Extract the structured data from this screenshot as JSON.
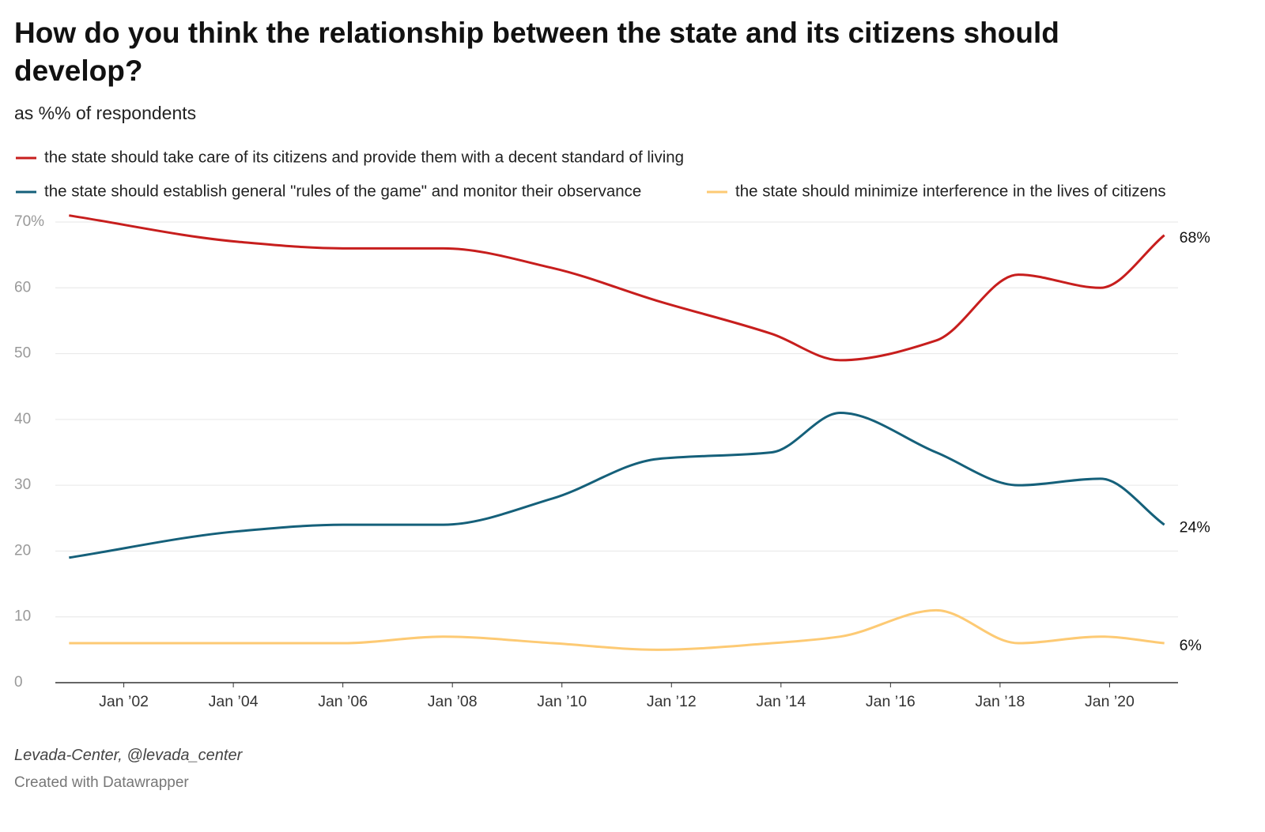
{
  "chart_data": {
    "type": "line",
    "title": "How do you think the relationship between the state and its citizens should develop?",
    "subtitle": "as %% of respondents",
    "source": "Levada-Center, @levada_center",
    "credit": "Created with Datawrapper",
    "x": [
      "2001-01",
      "2004-02",
      "2006-01",
      "2007-11",
      "2009-11",
      "2011-10",
      "2013-11",
      "2015-02",
      "2016-11",
      "2018-05",
      "2019-11",
      "2021-01"
    ],
    "series": [
      {
        "name": "the state should take care of its citizens and provide them with a decent standard of living",
        "color": "#c71e1d",
        "values": [
          71,
          67,
          66,
          66,
          63,
          58,
          53,
          49,
          52,
          62,
          60,
          68
        ],
        "value_labels": [
          null,
          null,
          null,
          null,
          null,
          null,
          null,
          null,
          null,
          null,
          null,
          "68%"
        ]
      },
      {
        "name": "the state should establish general \"rules of the game\" and monitor their observance",
        "color": "#15607a",
        "values": [
          19,
          23,
          24,
          24,
          28,
          34,
          35,
          41,
          35,
          30,
          31,
          24
        ],
        "value_labels": [
          null,
          null,
          null,
          null,
          null,
          null,
          null,
          null,
          null,
          null,
          null,
          "24%"
        ]
      },
      {
        "name": "the state should minimize interference in the lives of citizens",
        "color": "#fdca74",
        "values": [
          6,
          6,
          6,
          7,
          6,
          5,
          6,
          7,
          11,
          6,
          7,
          6
        ],
        "value_labels": [
          null,
          null,
          null,
          null,
          null,
          null,
          null,
          null,
          null,
          null,
          null,
          "6%"
        ]
      }
    ],
    "xlim": [
      "2000-10",
      "2021-04"
    ],
    "xticks": [
      {
        "value": "2002-01",
        "label": "Jan ’02"
      },
      {
        "value": "2004-01",
        "label": "Jan ’04"
      },
      {
        "value": "2006-01",
        "label": "Jan ’06"
      },
      {
        "value": "2008-01",
        "label": "Jan ’08"
      },
      {
        "value": "2010-01",
        "label": "Jan ’10"
      },
      {
        "value": "2012-01",
        "label": "Jan ’12"
      },
      {
        "value": "2014-01",
        "label": "Jan ’14"
      },
      {
        "value": "2016-01",
        "label": "Jan ’16"
      },
      {
        "value": "2018-01",
        "label": "Jan ’18"
      },
      {
        "value": "2020-01",
        "label": "Jan ’20"
      }
    ],
    "ylim": [
      0,
      70
    ],
    "yticks": [
      0,
      10,
      20,
      30,
      40,
      50,
      60,
      {
        "value": 70,
        "label": "70%"
      }
    ],
    "grid": true
  }
}
